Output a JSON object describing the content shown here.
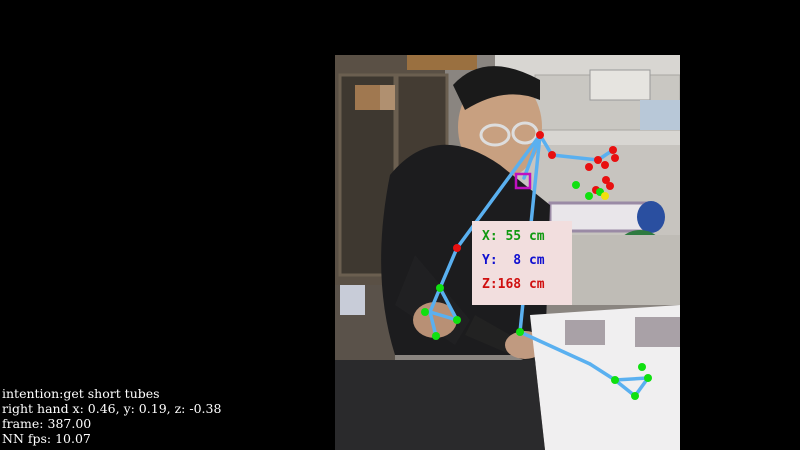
{
  "video": {
    "scene": "lab-bench-camera-feed"
  },
  "measurement": {
    "x_text": "X: 55 cm",
    "y_text": "Y:  8 cm",
    "z_text": "Z:168 cm",
    "x_color": "#109910",
    "y_color": "#1010d0",
    "z_color": "#d01010"
  },
  "status": {
    "intention": "intention:get short tubes",
    "right_hand": "right hand x: 0.46, y: 0.19, z: -0.38",
    "frame": "frame: 387.00",
    "fps": "NN fps: 10.07"
  },
  "colors": {
    "skeleton": "#5ab0f0",
    "joint_green": "#10e010",
    "joint_red": "#e81010",
    "joint_yellow": "#f0e010",
    "target_box": "#c010c0",
    "background": "#000000"
  }
}
